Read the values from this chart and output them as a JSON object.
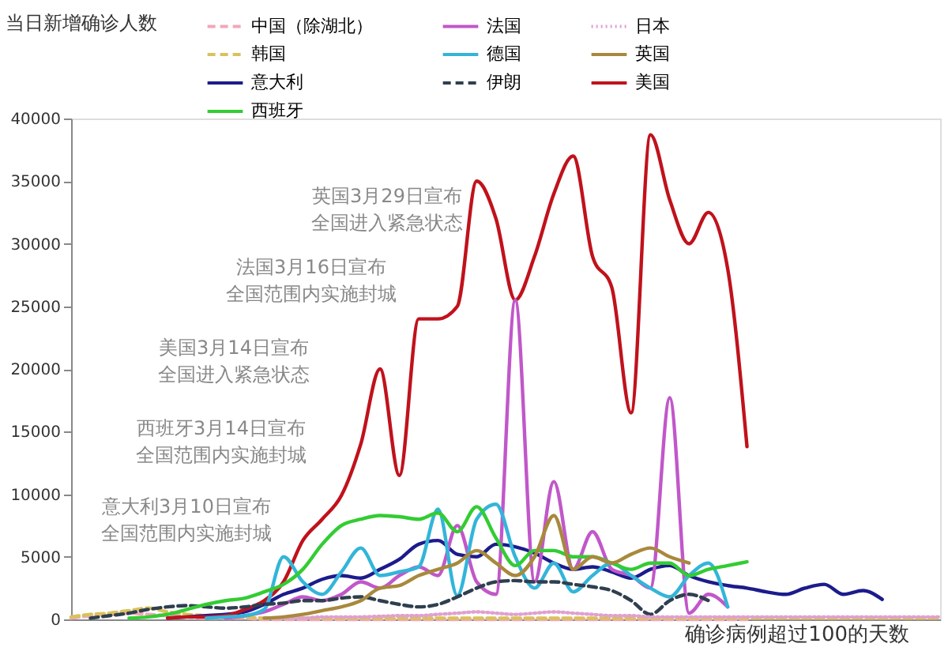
{
  "chart_data": {
    "type": "line",
    "ylabel": "当日新增确诊人数",
    "xlabel": "确诊病例超过100的天数",
    "categories": [
      null,
      null,
      null,
      null,
      null,
      null,
      null,
      null,
      null,
      null,
      null,
      null,
      null,
      null,
      null,
      null,
      null,
      null,
      null,
      null,
      null,
      null,
      null,
      null,
      null,
      null,
      null,
      null,
      null,
      null,
      null,
      null,
      null,
      null,
      null,
      null,
      null,
      null,
      null,
      null,
      null,
      null,
      null,
      null,
      null,
      null
    ],
    "ylim": [
      0,
      40000
    ],
    "yticks": [
      0,
      5000,
      10000,
      15000,
      20000,
      25000,
      30000,
      35000,
      40000
    ],
    "tick_labels": "y",
    "grid": false,
    "legend": "top",
    "marker": "none",
    "series": [
      {
        "name": "中国（除湖北）",
        "color": "#f2a7b8",
        "line_style": "dashed",
        "values": [
          100,
          300,
          400,
          500,
          400,
          300,
          200,
          100,
          100,
          100,
          0,
          0,
          0,
          0,
          0,
          0,
          0,
          0,
          0,
          0,
          0,
          0,
          0,
          0,
          0,
          0,
          0,
          0,
          0,
          0,
          0,
          0,
          0,
          0,
          0,
          0,
          null,
          null,
          null,
          null,
          null,
          null,
          null,
          null,
          null,
          null
        ]
      },
      {
        "name": "韩国",
        "color": "#d9c25a",
        "line_style": "dashed",
        "values": [
          200,
          400,
          500,
          700,
          900,
          600,
          400,
          300,
          200,
          200,
          100,
          100,
          100,
          100,
          100,
          100,
          100,
          100,
          100,
          100,
          100,
          100,
          100,
          100,
          100,
          100,
          100,
          100,
          100,
          100,
          100,
          100,
          100,
          100,
          100,
          100,
          100,
          100,
          100,
          100,
          100,
          100,
          100,
          100,
          100,
          100
        ]
      },
      {
        "name": "意大利",
        "color": "#1c1c8c",
        "line_style": "solid",
        "values": [
          null,
          null,
          null,
          null,
          null,
          100,
          200,
          300,
          400,
          600,
          1200,
          2000,
          2500,
          3200,
          3500,
          3300,
          4000,
          4800,
          6000,
          6300,
          5200,
          5000,
          6000,
          5800,
          5300,
          4500,
          4000,
          4200,
          3800,
          3300,
          4000,
          4300,
          3500,
          3000,
          2700,
          2500,
          2200,
          2000,
          2500,
          2800,
          2000,
          2300,
          1600,
          null,
          null,
          null
        ]
      },
      {
        "name": "美国",
        "color": "#c0121c",
        "line_style": "solid",
        "values": [
          null,
          null,
          null,
          null,
          null,
          100,
          200,
          200,
          300,
          800,
          1500,
          3000,
          6300,
          8000,
          9900,
          14000,
          20000,
          11500,
          24000,
          24000,
          25000,
          35000,
          32000,
          25500,
          29000,
          34000,
          37000,
          29000,
          26500,
          16500,
          38700,
          33500,
          30000,
          32500,
          28000,
          13800,
          null,
          null,
          null,
          null,
          null,
          null,
          null,
          null,
          null,
          null
        ]
      },
      {
        "name": "法国",
        "color": "#c157c9",
        "line_style": "solid",
        "values": [
          null,
          null,
          null,
          null,
          null,
          null,
          null,
          null,
          100,
          300,
          600,
          1200,
          1800,
          1500,
          2000,
          3000,
          2500,
          3500,
          4200,
          3500,
          7500,
          3000,
          2000,
          25500,
          3000,
          11000,
          4000,
          7000,
          4000,
          3500,
          2500,
          17700,
          500,
          2000,
          1000,
          null,
          null,
          null,
          null,
          null,
          null,
          null,
          null,
          null,
          null,
          null
        ]
      },
      {
        "name": "德国",
        "color": "#33b5d9",
        "line_style": "solid",
        "values": [
          null,
          null,
          null,
          null,
          null,
          null,
          null,
          100,
          200,
          300,
          800,
          5000,
          3000,
          2000,
          3800,
          5700,
          3500,
          3800,
          4200,
          8800,
          1900,
          8000,
          9200,
          5000,
          2500,
          4500,
          2200,
          3500,
          4500,
          3500,
          2500,
          1800,
          3500,
          4500,
          1000,
          null,
          null,
          null,
          null,
          null,
          null,
          null,
          null,
          null,
          null,
          null
        ]
      },
      {
        "name": "伊朗",
        "color": "#2f3f4f",
        "line_style": "dashed",
        "values": [
          null,
          100,
          300,
          500,
          800,
          1000,
          1100,
          1000,
          900,
          1000,
          1200,
          1300,
          1500,
          1500,
          1700,
          1800,
          1500,
          1200,
          1000,
          1200,
          1800,
          2500,
          3000,
          3100,
          3000,
          3000,
          2800,
          2600,
          2300,
          1500,
          400,
          1500,
          2000,
          1500,
          null,
          null,
          null,
          null,
          null,
          null,
          null,
          null,
          null,
          null,
          null,
          null
        ]
      },
      {
        "name": "西班牙",
        "color": "#33cc33",
        "line_style": "solid",
        "values": [
          null,
          null,
          null,
          100,
          200,
          400,
          800,
          1200,
          1500,
          1700,
          2200,
          2800,
          4000,
          6000,
          7500,
          8000,
          8300,
          8200,
          8000,
          8500,
          7000,
          9000,
          6500,
          4300,
          5500,
          5500,
          5000,
          5000,
          4500,
          4000,
          4500,
          4500,
          3500,
          4000,
          4300,
          4600,
          null,
          null,
          null,
          null,
          null,
          null,
          null,
          null,
          null,
          null
        ]
      },
      {
        "name": "日本",
        "color": "#e0a0d0",
        "line_style": "dotted",
        "values": [
          null,
          null,
          null,
          null,
          null,
          null,
          null,
          null,
          null,
          null,
          100,
          100,
          100,
          200,
          200,
          200,
          250,
          300,
          300,
          400,
          500,
          600,
          500,
          400,
          500,
          600,
          500,
          400,
          300,
          300,
          200,
          200,
          200,
          200,
          200,
          200,
          200,
          200,
          200,
          200,
          200,
          200,
          200,
          200,
          200,
          200
        ]
      },
      {
        "name": "英国",
        "color": "#a8893c",
        "line_style": "solid",
        "values": [
          null,
          null,
          null,
          null,
          null,
          null,
          null,
          null,
          null,
          null,
          100,
          200,
          400,
          700,
          1000,
          1500,
          2500,
          2700,
          3500,
          4000,
          4500,
          5500,
          4500,
          3500,
          5000,
          8300,
          4000,
          5000,
          4500,
          5200,
          5700,
          5000,
          4500,
          null,
          null,
          null,
          null,
          null,
          null,
          null,
          null,
          null,
          null,
          null,
          null,
          null
        ]
      }
    ],
    "annotations": [
      "英国3月29日宣布全国进入紧急状态",
      "法国3月16日宣布全国范围内实施封城",
      "美国3月14日宣布全国进入紧急状态",
      "西班牙3月14日宣布全国范围内实施封城",
      "意大利3月10日宣布全国范围内实施封城"
    ]
  }
}
